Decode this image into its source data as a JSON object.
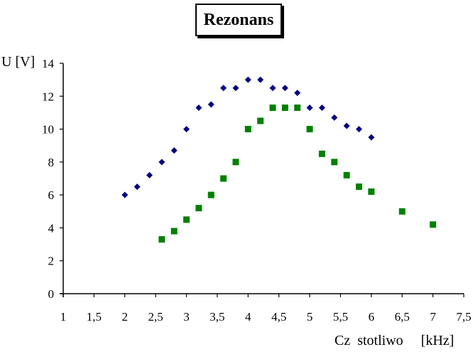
{
  "chart_data": {
    "type": "scatter",
    "title": "Rezonans",
    "ylabel": "U [V]",
    "xlabel": "Cz  stotliwo     [kHz]",
    "xlim": [
      1,
      7.5
    ],
    "ylim": [
      0,
      14
    ],
    "x_ticks": [
      "1",
      "1,5",
      "2",
      "2,5",
      "3",
      "3,5",
      "4",
      "4,5",
      "5",
      "5,5",
      "6",
      "6,5",
      "7",
      "7,5"
    ],
    "y_ticks": [
      "0",
      "2",
      "4",
      "6",
      "8",
      "10",
      "12",
      "14"
    ],
    "grid": false,
    "legend": "none",
    "series": [
      {
        "marker": "diamond",
        "color": "#000080",
        "points": [
          [
            2.0,
            6.0
          ],
          [
            2.2,
            6.5
          ],
          [
            2.4,
            7.2
          ],
          [
            2.6,
            8.0
          ],
          [
            2.8,
            8.7
          ],
          [
            3.0,
            10.0
          ],
          [
            3.2,
            11.3
          ],
          [
            3.4,
            11.5
          ],
          [
            3.6,
            12.5
          ],
          [
            3.8,
            12.5
          ],
          [
            4.0,
            13.0
          ],
          [
            4.2,
            13.0
          ],
          [
            4.4,
            12.5
          ],
          [
            4.6,
            12.5
          ],
          [
            4.8,
            12.2
          ],
          [
            5.0,
            11.3
          ],
          [
            5.2,
            11.3
          ],
          [
            5.4,
            10.7
          ],
          [
            5.6,
            10.2
          ],
          [
            5.8,
            10.0
          ],
          [
            6.0,
            9.5
          ]
        ]
      },
      {
        "marker": "square",
        "color": "#008000",
        "points": [
          [
            2.6,
            3.3
          ],
          [
            2.8,
            3.8
          ],
          [
            3.0,
            4.5
          ],
          [
            3.2,
            5.2
          ],
          [
            3.4,
            6.0
          ],
          [
            3.6,
            7.0
          ],
          [
            3.8,
            8.0
          ],
          [
            4.0,
            10.0
          ],
          [
            4.2,
            10.5
          ],
          [
            4.4,
            11.3
          ],
          [
            4.6,
            11.3
          ],
          [
            4.8,
            11.3
          ],
          [
            5.0,
            10.0
          ],
          [
            5.2,
            8.5
          ],
          [
            5.4,
            8.0
          ],
          [
            5.6,
            7.2
          ],
          [
            5.8,
            6.5
          ],
          [
            6.0,
            6.2
          ],
          [
            6.5,
            5.0
          ],
          [
            7.0,
            4.2
          ]
        ]
      }
    ]
  }
}
